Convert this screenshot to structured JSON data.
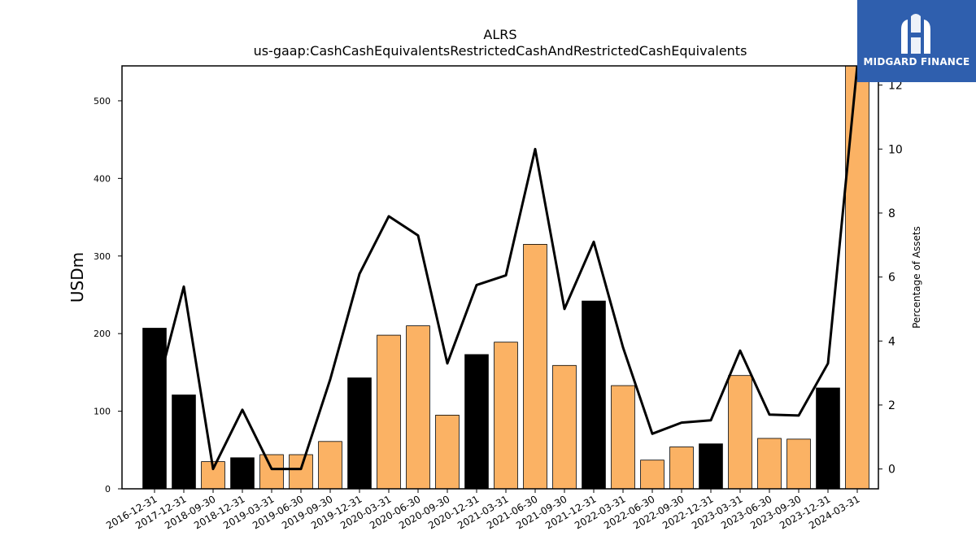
{
  "chart_data": {
    "type": "bar",
    "title": "ALRS",
    "subtitle": "us-gaap:CashCashEquivalentsRestrictedCashAndRestrictedCashEquivalents",
    "ylabel": "USDm",
    "y2label": "Percentage of Assets",
    "ylim": [
      0,
      545
    ],
    "y2lim": [
      -0.62,
      12.6
    ],
    "yticks": [
      0,
      100,
      200,
      300,
      400,
      500
    ],
    "y2ticks": [
      0,
      2,
      4,
      6,
      8,
      10,
      12
    ],
    "categories": [
      "2016-12-31",
      "2017-12-31",
      "2018-09-30",
      "2018-12-31",
      "2019-03-31",
      "2019-06-30",
      "2019-09-30",
      "2019-12-31",
      "2020-03-31",
      "2020-06-30",
      "2020-09-30",
      "2020-12-31",
      "2021-03-31",
      "2021-06-30",
      "2021-09-30",
      "2021-12-31",
      "2022-03-31",
      "2022-06-30",
      "2022-09-30",
      "2022-12-31",
      "2023-03-31",
      "2023-06-30",
      "2023-09-30",
      "2023-12-31",
      "2024-03-31"
    ],
    "series": [
      {
        "kind": "bar",
        "values": [
          207,
          121,
          35,
          40,
          44,
          44,
          61,
          143,
          198,
          210,
          95,
          173,
          189,
          315,
          159,
          242,
          133,
          37,
          54,
          58,
          146,
          65,
          64,
          130,
          548
        ],
        "colors": [
          "#000000",
          "#000000",
          "#fbb264",
          "#000000",
          "#fbb264",
          "#fbb264",
          "#fbb264",
          "#000000",
          "#fbb264",
          "#fbb264",
          "#fbb264",
          "#000000",
          "#fbb264",
          "#fbb264",
          "#fbb264",
          "#000000",
          "#fbb264",
          "#fbb264",
          "#fbb264",
          "#000000",
          "#fbb264",
          "#fbb264",
          "#fbb264",
          "#000000",
          "#fbb264"
        ]
      },
      {
        "kind": "line",
        "axis": "right",
        "values": [
          2.2,
          5.7,
          0.0,
          1.85,
          0.0,
          0.0,
          2.8,
          6.1,
          7.9,
          7.3,
          3.3,
          5.75,
          6.05,
          10.0,
          5.0,
          7.1,
          3.8,
          1.1,
          1.45,
          1.52,
          3.7,
          1.7,
          1.67,
          3.3,
          12.6
        ],
        "color": "#000000"
      }
    ],
    "grid": false,
    "bar_color_annual": "#000000",
    "bar_color_quarterly": "#fbb264"
  },
  "logo": {
    "text": "MIDGARD FINANCE",
    "background": "#2f5fae"
  }
}
